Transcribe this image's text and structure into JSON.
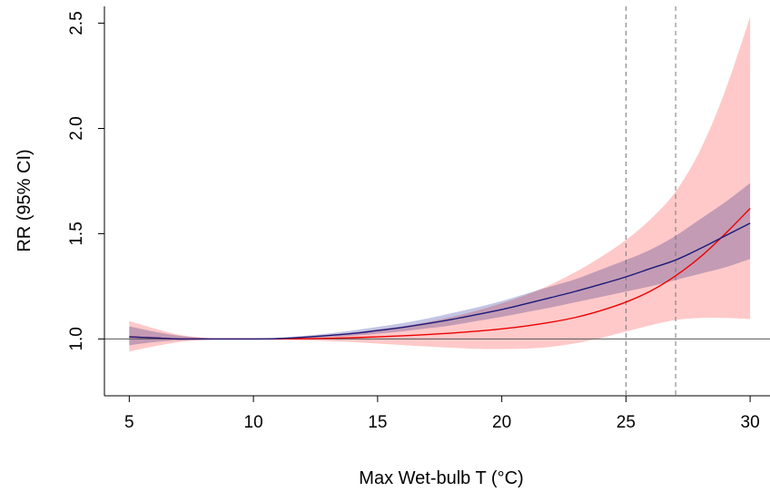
{
  "chart_data": {
    "type": "line",
    "title": "",
    "xlabel": "Max Wet-bulb T (°C)",
    "ylabel": "RR (95% CI)",
    "xlim": [
      4,
      30.8
    ],
    "ylim": [
      0.73,
      2.58
    ],
    "xticks": [
      5,
      10,
      15,
      20,
      25,
      30
    ],
    "xtick_labels": [
      "5",
      "10",
      "15",
      "20",
      "25",
      "30"
    ],
    "yticks": [
      1.0,
      1.5,
      2.0,
      2.5
    ],
    "ytick_labels": [
      "1.0",
      "1.5",
      "2.0",
      "2.5"
    ],
    "grid": false,
    "legend": "none",
    "reference_line": 1.0,
    "vertical_dashed_lines": [
      25,
      27
    ],
    "x": [
      5,
      6,
      7,
      8,
      9,
      10,
      11,
      12,
      13,
      14,
      15,
      16,
      17,
      18,
      19,
      20,
      21,
      22,
      23,
      24,
      25,
      26,
      27,
      28,
      29,
      30
    ],
    "series": [
      {
        "color": "#1a1a7a",
        "band_color": "#a9acd9",
        "values": [
          1.01,
          1.005,
          1.0,
          1.0,
          1.0,
          1.0,
          1.002,
          1.008,
          1.016,
          1.026,
          1.04,
          1.055,
          1.073,
          1.093,
          1.116,
          1.14,
          1.168,
          1.197,
          1.227,
          1.26,
          1.295,
          1.335,
          1.375,
          1.43,
          1.49,
          1.55
        ],
        "lower": [
          0.97,
          0.985,
          0.993,
          0.997,
          0.999,
          1.0,
          1.0,
          1.003,
          1.008,
          1.015,
          1.025,
          1.036,
          1.05,
          1.065,
          1.085,
          1.105,
          1.128,
          1.15,
          1.175,
          1.2,
          1.225,
          1.25,
          1.28,
          1.31,
          1.34,
          1.38
        ],
        "upper": [
          1.06,
          1.035,
          1.015,
          1.005,
          1.001,
          1.0,
          1.005,
          1.014,
          1.026,
          1.04,
          1.057,
          1.075,
          1.097,
          1.123,
          1.15,
          1.18,
          1.215,
          1.25,
          1.285,
          1.33,
          1.375,
          1.425,
          1.49,
          1.57,
          1.65,
          1.74
        ]
      },
      {
        "color": "#ee0000",
        "band_color": "#ffc9c9",
        "values": [
          1.01,
          1.005,
          1.0,
          1.0,
          1.0,
          1.0,
          1.0,
          1.001,
          1.003,
          1.006,
          1.01,
          1.015,
          1.021,
          1.028,
          1.037,
          1.048,
          1.062,
          1.08,
          1.103,
          1.135,
          1.175,
          1.228,
          1.3,
          1.39,
          1.5,
          1.62
        ],
        "lower": [
          0.94,
          0.965,
          0.985,
          0.995,
          0.999,
          1.0,
          0.998,
          0.994,
          0.99,
          0.985,
          0.978,
          0.971,
          0.964,
          0.958,
          0.953,
          0.952,
          0.954,
          0.963,
          0.98,
          1.005,
          1.035,
          1.065,
          1.09,
          1.1,
          1.1,
          1.095
        ],
        "upper": [
          1.085,
          1.05,
          1.02,
          1.006,
          1.001,
          1.0,
          1.005,
          1.012,
          1.02,
          1.03,
          1.045,
          1.06,
          1.08,
          1.105,
          1.135,
          1.17,
          1.21,
          1.26,
          1.32,
          1.39,
          1.47,
          1.57,
          1.7,
          1.9,
          2.18,
          2.53
        ]
      }
    ]
  }
}
